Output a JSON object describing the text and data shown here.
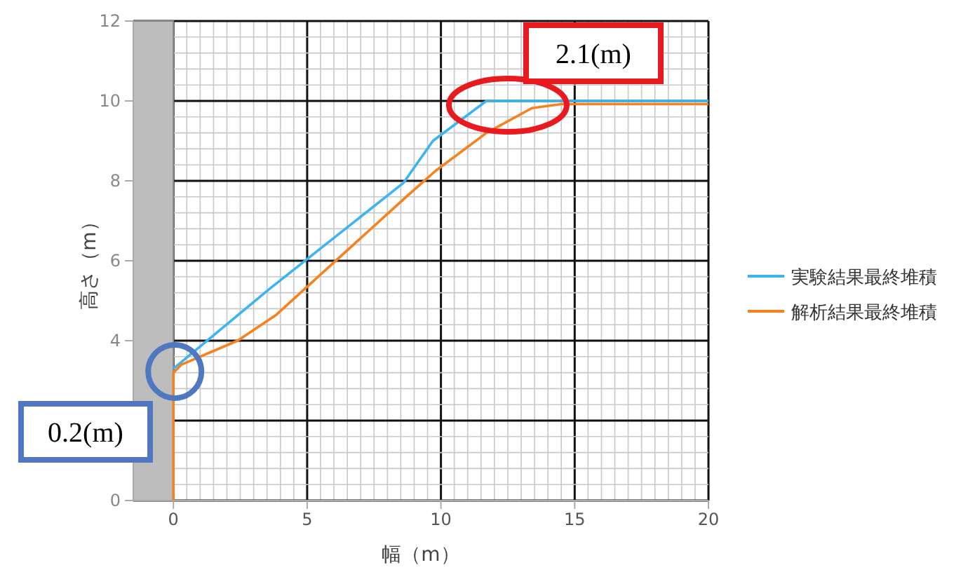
{
  "chart_data": {
    "type": "line",
    "xlabel": "幅（m）",
    "ylabel": "高さ（m）",
    "xlim": [
      -1.5,
      20
    ],
    "xticks": [
      0,
      5,
      10,
      15,
      20
    ],
    "ylim": [
      0,
      12
    ],
    "yticks": [
      0,
      {
        "value": 2,
        "label": null
      },
      4,
      6,
      8,
      10,
      12
    ],
    "bands": [
      {
        "axis": "x",
        "from": -1.5,
        "to": 0,
        "color": "#bdbdbd"
      }
    ],
    "grid": true,
    "legend": "right",
    "line_style": "solid",
    "marker": "none",
    "series": [
      {
        "name": "実験結果最終堆積",
        "color": "#3cb4f0",
        "x": [
          0,
          3.6,
          8.6,
          9.7,
          11.7,
          20
        ],
        "values": [
          3.3,
          5.3,
          7.95,
          9.0,
          10.0,
          10.0
        ]
      },
      {
        "name": "解析結果最終堆積",
        "color": "#f5821f",
        "x": [
          0,
          0,
          0.3,
          2.4,
          3.85,
          8.7,
          9.8,
          11.7,
          13.4,
          14.5,
          20
        ],
        "values": [
          0,
          3.2,
          3.4,
          4.0,
          4.65,
          7.6,
          8.25,
          9.2,
          9.82,
          9.92,
          9.92
        ]
      }
    ],
    "annotations": [
      {
        "text": "2.1(m)",
        "x": 12.5,
        "y": 10
      },
      {
        "text": "0.2(m)",
        "x": 0,
        "y": 3.3
      }
    ]
  }
}
